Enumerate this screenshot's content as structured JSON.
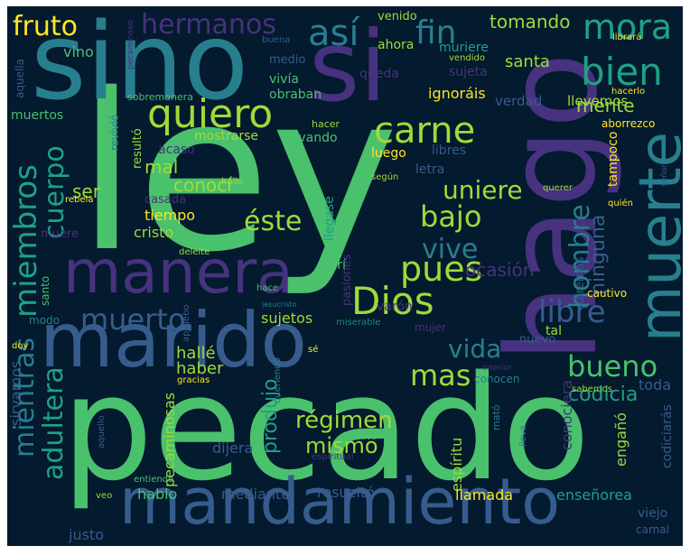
{
  "colors": {
    "background": "#041a2e",
    "viridis": [
      "#440154",
      "#46327e",
      "#365c8d",
      "#277f8e",
      "#1fa187",
      "#4ac16d",
      "#a0da39",
      "#fde725"
    ]
  },
  "words": [
    "ley",
    "pecado",
    "hago",
    "sino",
    "si",
    "marido",
    "mandamiento",
    "manera",
    "muerte",
    "quiero",
    "carne",
    "bien",
    "mora",
    "así",
    "fin",
    "hermanos",
    "fruto",
    "Dios",
    "pues",
    "miembros",
    "cuerpo",
    "bajo",
    "uniere",
    "éste",
    "vive",
    "muerto",
    "libre",
    "hombre",
    "bueno",
    "vida",
    "mas",
    "mientras",
    "adultera",
    "régimen",
    "mismo",
    "codicia",
    "ninguna",
    "produjo",
    "tomando",
    "santa",
    "mente",
    "ocasión",
    "mal",
    "ser",
    "conocí",
    "tiempo",
    "cristo",
    "sujetos",
    "hallé",
    "haber",
    "dijera",
    "pecaminosas",
    "espíritu",
    "conociera",
    "engañó",
    "toda",
    "codiciarás",
    "llamada",
    "enseñorea",
    "resucitó",
    "mediante",
    "hablo",
    "justo",
    "viejo",
    "carnal",
    "sirvamos",
    "venido",
    "ahora",
    "muriere",
    "queda",
    "sujeta",
    "ignoráis",
    "verdad",
    "llevemos",
    "vino",
    "medio",
    "vivía",
    "obraban",
    "muertos",
    "resultó",
    "acaso",
    "mostrarse",
    "llevando",
    "luego",
    "libres",
    "letra",
    "revivió",
    "tampoco",
    "aborrezco",
    "hacerlo",
    "librará",
    "buena",
    "aquella",
    "vendido",
    "sobremanera",
    "hacer",
    "hallo",
    "según",
    "querer",
    "rebela",
    "casada",
    "llegase",
    "pasiones",
    "quién",
    "señor",
    "muere",
    "deleite",
    "morí",
    "diremos",
    "varón",
    "cautivo",
    "santo",
    "hace",
    "jesucristo",
    "modo",
    "miserable",
    "mujer",
    "nuevo",
    "tal",
    "doy",
    "apruebo",
    "sé",
    "interior",
    "gracias",
    "queriendo",
    "conocen",
    "sabemos",
    "mató",
    "lleva",
    "aquello",
    "sirvo",
    "espiritual",
    "entiendo",
    "veo",
    "pecaminoso"
  ]
}
